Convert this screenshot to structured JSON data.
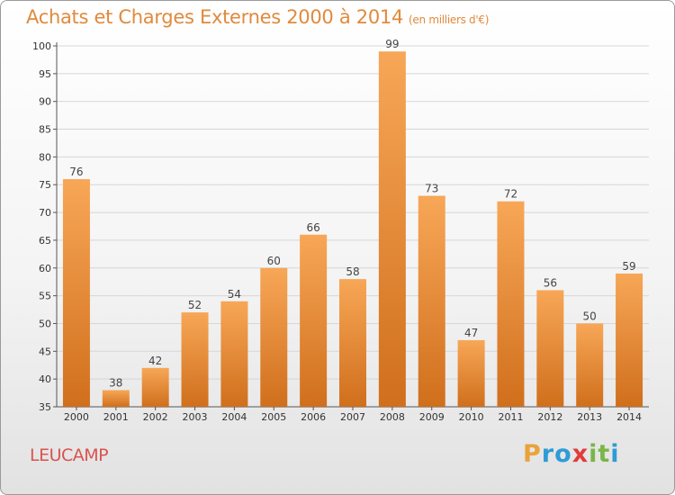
{
  "title": "Achats et Charges Externes 2000 à 2014",
  "subtitle": "(en milliers d'€)",
  "commune": "LEUCAMP",
  "logo": {
    "letters": [
      "P",
      "r",
      "o",
      "x",
      "i",
      "t",
      "i"
    ],
    "colors": [
      "#e8a33a",
      "#2f9bd6",
      "#2f9bd6",
      "#e23b3b",
      "#7ab648",
      "#7ab648",
      "#2f9bd6"
    ]
  },
  "colors": {
    "bar_light": "#f7a757",
    "bar_dark": "#d06f1c",
    "title": "#e08a3c"
  },
  "chart_data": {
    "type": "bar",
    "title": "Achats et Charges Externes 2000 à 2014",
    "subtitle": "(en milliers d'€)",
    "categories": [
      "2000",
      "2001",
      "2002",
      "2003",
      "2004",
      "2005",
      "2006",
      "2007",
      "2008",
      "2009",
      "2010",
      "2011",
      "2012",
      "2013",
      "2014"
    ],
    "values": [
      76,
      38,
      42,
      52,
      54,
      60,
      66,
      58,
      99,
      73,
      47,
      72,
      56,
      50,
      59
    ],
    "ylim": [
      35,
      100
    ],
    "yticks": [
      35,
      40,
      45,
      50,
      55,
      60,
      65,
      70,
      75,
      80,
      85,
      90,
      95,
      100
    ],
    "grid": true,
    "xlabel": "",
    "ylabel": ""
  }
}
